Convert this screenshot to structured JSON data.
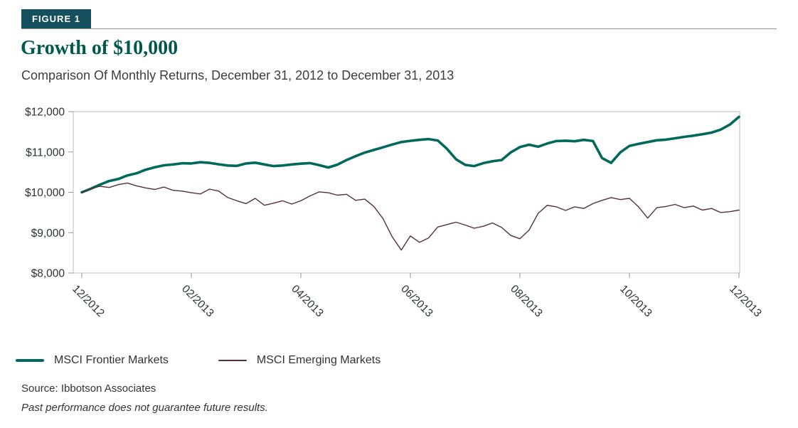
{
  "figure": {
    "label": "FIGURE 1"
  },
  "header": {
    "title": "Growth of $10,000",
    "subtitle": "Comparison Of Monthly Returns, December 31, 2012 to December 31, 2013"
  },
  "footer": {
    "source": "Source: Ibbotson Associates",
    "disclaimer": "Past performance does not guarantee future results."
  },
  "colors": {
    "badge_bg": "#15505e",
    "title_teal": "#00594f",
    "frontier_line": "#00695c",
    "emerging_line": "#55303a",
    "plot_border": "#b9bdbf",
    "tick": "#8e989c"
  },
  "chart_data": {
    "type": "line",
    "title": "Growth of $10,000",
    "subtitle": "Comparison Of Monthly Returns, December 31, 2012 to December 31, 2013",
    "xlabel": "",
    "ylabel": "",
    "ylim": [
      8000,
      12000
    ],
    "grid": false,
    "legend_position": "bottom-left",
    "x_tick_labels": [
      "12/2012",
      "02/2013",
      "04/2013",
      "06/2013",
      "08/2013",
      "10/2013",
      "12/2013"
    ],
    "y_ticks": [
      8000,
      9000,
      10000,
      11000,
      12000
    ],
    "y_tick_labels": [
      "$8,000",
      "$9,000",
      "$10,000",
      "$11,000",
      "$12,000"
    ],
    "series": [
      {
        "name": "MSCI Frontier Markets",
        "color": "#00695c",
        "width": 3.6,
        "values": [
          10000,
          10090,
          10190,
          10280,
          10330,
          10420,
          10470,
          10560,
          10620,
          10670,
          10690,
          10720,
          10715,
          10745,
          10730,
          10695,
          10665,
          10655,
          10715,
          10735,
          10690,
          10650,
          10665,
          10690,
          10710,
          10725,
          10675,
          10615,
          10685,
          10800,
          10895,
          10985,
          11050,
          11115,
          11185,
          11245,
          11275,
          11300,
          11320,
          11285,
          11080,
          10820,
          10680,
          10650,
          10725,
          10770,
          10800,
          10990,
          11120,
          11180,
          11130,
          11210,
          11270,
          11280,
          11265,
          11300,
          11270,
          10850,
          10730,
          10990,
          11150,
          11200,
          11245,
          11290,
          11305,
          11340,
          11375,
          11405,
          11440,
          11480,
          11555,
          11680,
          11870
        ]
      },
      {
        "name": "MSCI Emerging Markets",
        "color": "#55303a",
        "width": 1.4,
        "values": [
          10000,
          10090,
          10150,
          10120,
          10190,
          10230,
          10160,
          10110,
          10070,
          10130,
          10050,
          10030,
          9990,
          9960,
          10080,
          10030,
          9870,
          9790,
          9720,
          9850,
          9680,
          9730,
          9790,
          9710,
          9790,
          9910,
          10010,
          9990,
          9930,
          9950,
          9800,
          9830,
          9650,
          9350,
          8900,
          8570,
          8920,
          8760,
          8870,
          9140,
          9200,
          9260,
          9190,
          9110,
          9160,
          9240,
          9130,
          8930,
          8850,
          9060,
          9480,
          9680,
          9640,
          9550,
          9640,
          9600,
          9720,
          9800,
          9870,
          9820,
          9850,
          9640,
          9360,
          9620,
          9650,
          9700,
          9620,
          9660,
          9560,
          9600,
          9500,
          9520,
          9560
        ]
      }
    ]
  }
}
